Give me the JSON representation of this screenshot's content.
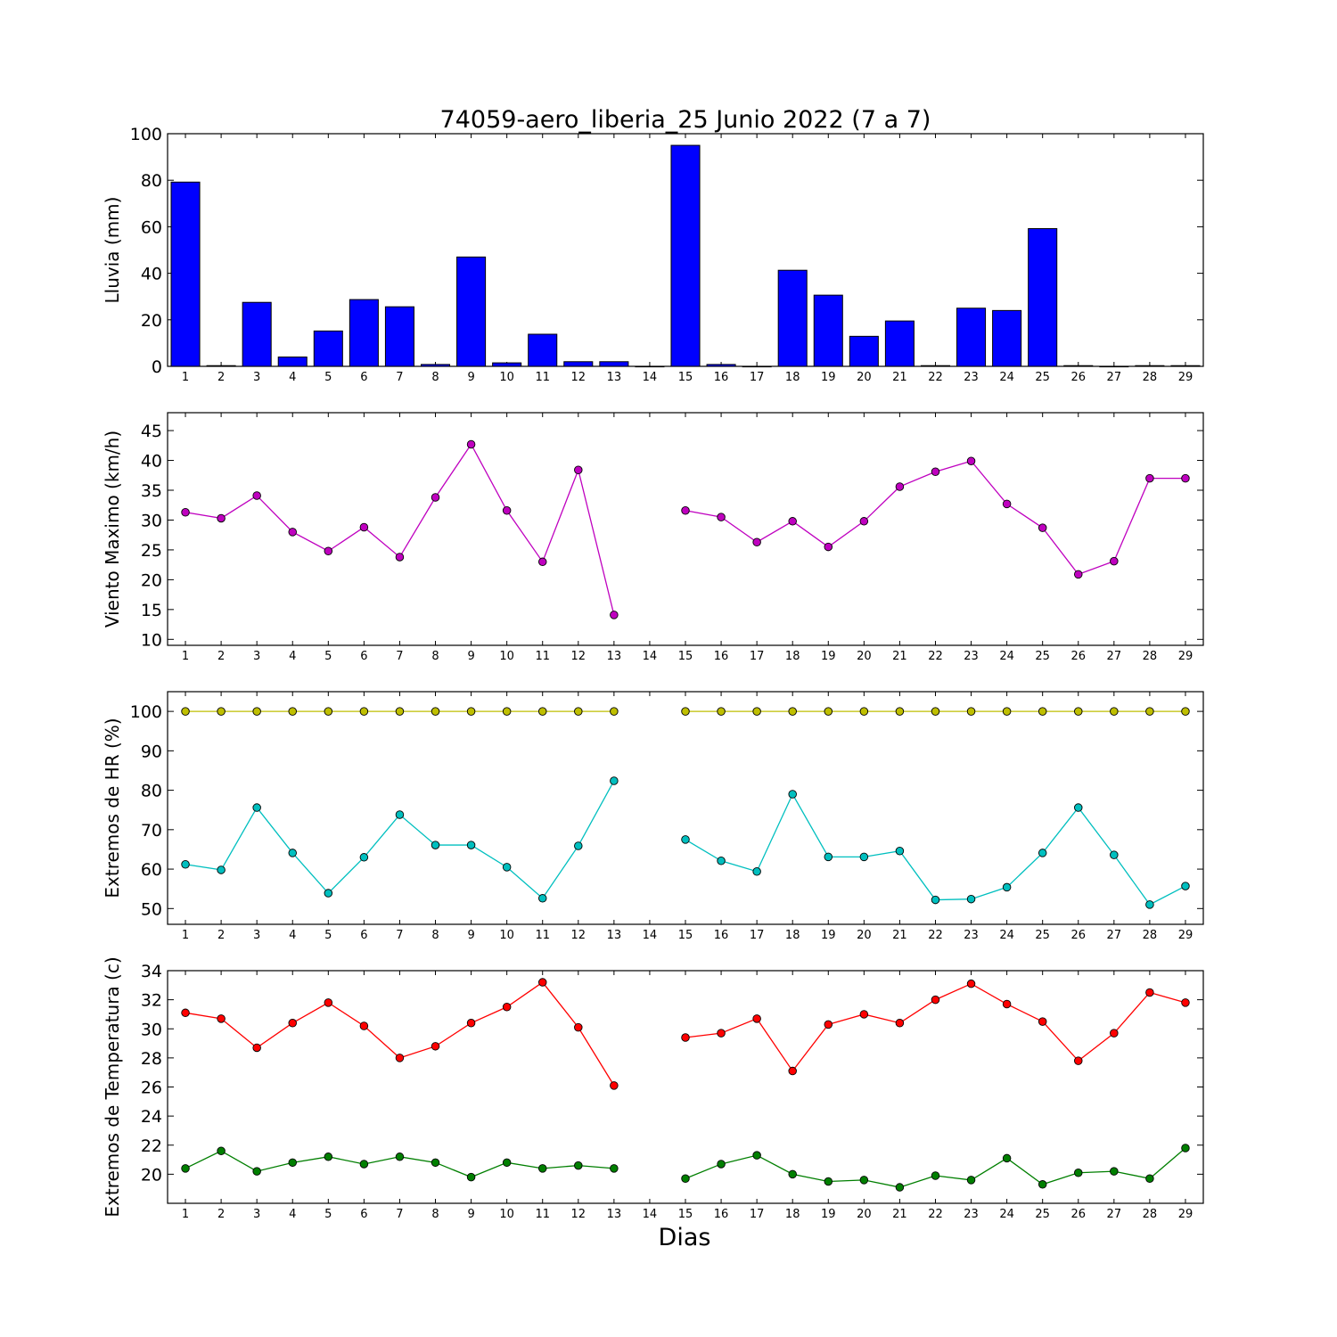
{
  "title": "74059-aero_liberia_25 Junio 2022  (7 a 7)",
  "xlabel": "Dias",
  "days": [
    1,
    2,
    3,
    4,
    5,
    6,
    7,
    8,
    9,
    10,
    11,
    12,
    13,
    14,
    15,
    16,
    17,
    18,
    19,
    20,
    21,
    22,
    23,
    24,
    25,
    26,
    27,
    28,
    29
  ],
  "chart_data": [
    {
      "type": "bar",
      "ylabel": "Lluvia (mm)",
      "ylim": [
        0,
        100
      ],
      "yticks": [
        0,
        20,
        40,
        60,
        80,
        100
      ],
      "colors": [
        "#0000ff"
      ],
      "series": [
        {
          "values": [
            79.2,
            0.3,
            27.5,
            4.0,
            15.2,
            28.7,
            25.6,
            0.8,
            47.0,
            1.5,
            13.8,
            2.0,
            2.0,
            0.0,
            95.0,
            0.8,
            0.0,
            41.3,
            30.6,
            12.9,
            19.5,
            0.3,
            25.0,
            24.0,
            59.2,
            0.3,
            0.0,
            0.3,
            0.3
          ]
        }
      ]
    },
    {
      "type": "line",
      "ylabel": "Viento Maximo (km/h)",
      "ylim": [
        9,
        48
      ],
      "yticks": [
        10,
        15,
        20,
        25,
        30,
        35,
        40,
        45
      ],
      "colors": [
        "#bf00bf"
      ],
      "series": [
        {
          "values": [
            31.3,
            30.3,
            34.1,
            28.0,
            24.8,
            28.8,
            23.8,
            33.8,
            42.7,
            31.6,
            23.0,
            38.4,
            14.1,
            null,
            31.6,
            30.5,
            26.3,
            29.8,
            25.5,
            29.8,
            35.6,
            38.1,
            39.9,
            32.7,
            28.7,
            20.9,
            23.1,
            37.0,
            37.0
          ]
        }
      ]
    },
    {
      "type": "line",
      "ylabel": "Extremos de HR (%)",
      "ylim": [
        46,
        105
      ],
      "yticks": [
        50,
        60,
        70,
        80,
        90,
        100
      ],
      "colors": [
        "#bfbf00",
        "#00bfbf"
      ],
      "series": [
        {
          "values": [
            100,
            100,
            100,
            100,
            100,
            100,
            100,
            100,
            100,
            100,
            100,
            100,
            100,
            null,
            100,
            100,
            100,
            100,
            100,
            100,
            100,
            100,
            100,
            100,
            100,
            100,
            100,
            100,
            100
          ]
        },
        {
          "values": [
            61.2,
            59.8,
            75.6,
            64.1,
            53.9,
            63.0,
            73.8,
            66.1,
            66.1,
            60.5,
            52.6,
            65.9,
            82.4,
            null,
            67.5,
            62.1,
            59.4,
            79.0,
            63.1,
            63.1,
            64.6,
            52.2,
            52.4,
            55.4,
            64.1,
            75.6,
            63.6,
            51.0,
            55.7
          ]
        }
      ]
    },
    {
      "type": "line",
      "ylabel": "Extremos de Temperatura (c)",
      "ylim": [
        18.0,
        34.0
      ],
      "yticks": [
        20,
        22,
        24,
        26,
        28,
        30,
        32,
        34
      ],
      "colors": [
        "#ff0000",
        "#007f00"
      ],
      "series": [
        {
          "values": [
            31.1,
            30.7,
            28.7,
            30.4,
            31.8,
            30.2,
            28.0,
            28.8,
            30.4,
            31.5,
            33.2,
            30.1,
            26.1,
            null,
            29.4,
            29.7,
            30.7,
            27.1,
            30.3,
            31.0,
            30.4,
            32.0,
            33.1,
            31.7,
            30.5,
            27.8,
            29.7,
            32.5,
            31.8
          ]
        },
        {
          "values": [
            20.4,
            21.6,
            20.2,
            20.8,
            21.2,
            20.7,
            21.2,
            20.8,
            19.8,
            20.8,
            20.4,
            20.6,
            20.4,
            null,
            19.7,
            20.7,
            21.3,
            20.0,
            19.5,
            19.6,
            19.1,
            19.9,
            19.6,
            21.1,
            19.3,
            20.1,
            20.2,
            19.7,
            21.8
          ]
        }
      ]
    }
  ]
}
